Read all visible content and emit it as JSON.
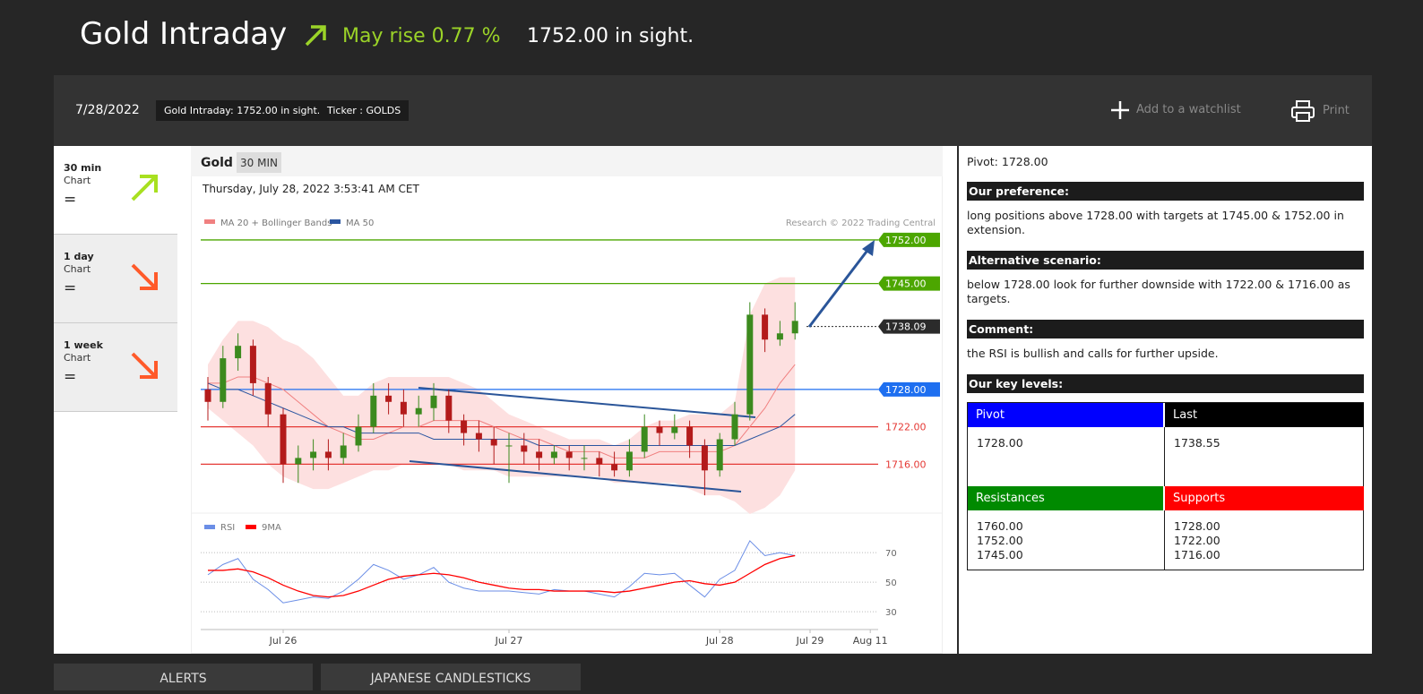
{
  "header": {
    "title": "Gold Intraday",
    "signal": "May rise 0.77 %",
    "target": "1752.00 in sight."
  },
  "toolbar": {
    "date": "7/28/2022",
    "badge": "Gold Intraday: 1752.00 in sight.",
    "ticker": "Ticker : GOLDS",
    "watchlist": "Add to a watchlist",
    "print": "Print"
  },
  "timeframes": [
    {
      "period": "30 min",
      "type": "Chart",
      "trend": "="
    },
    {
      "period": "1 day",
      "type": "Chart",
      "trend": "="
    },
    {
      "period": "1 week",
      "type": "Chart",
      "trend": "="
    }
  ],
  "chart_data": [
    {
      "type": "candlestick",
      "title": "Gold",
      "interval": "30 MIN",
      "timestamp": "Thursday, July 28, 2022 3:53:41 AM CET",
      "credit": "Research © 2022 Trading Central",
      "up_color": "#3c8a1e",
      "down_color": "#b31b1b",
      "open": [
        1728,
        1726,
        1733,
        1735,
        1729,
        1724,
        1716,
        1717,
        1718,
        1717,
        1719,
        1722,
        1727,
        1726,
        1724,
        1725,
        1727,
        1723,
        1721,
        1720,
        1719,
        1719,
        1718,
        1717,
        1718,
        1717,
        1717,
        1716,
        1715,
        1718,
        1722,
        1721,
        1722,
        1719,
        1715,
        1720,
        1724,
        1740,
        1736,
        1737,
        null,
        null,
        null,
        null,
        null
      ],
      "high": [
        1730,
        1735,
        1737,
        1736,
        1730,
        1725,
        1719,
        1720,
        1720,
        1721,
        1724,
        1729,
        1729,
        1728,
        1727,
        1729,
        1728,
        1724,
        1723,
        1722,
        1721,
        1721,
        1720,
        1719,
        1719,
        1719,
        1718,
        1718,
        1720,
        1724,
        1723,
        1724,
        1723,
        1720,
        1721,
        1726,
        1742,
        1741,
        1739,
        1742,
        null,
        null,
        null,
        null,
        null
      ],
      "low": [
        1723,
        1725,
        1731,
        1727,
        1722,
        1713,
        1713,
        1715,
        1715,
        1716,
        1718,
        1721,
        1724,
        1722,
        1722,
        1723,
        1721,
        1719,
        1718,
        1716,
        1713,
        1716,
        1715,
        1716,
        1715,
        1715,
        1714,
        1714,
        1714,
        1717,
        1719,
        1720,
        1717,
        1711,
        1714,
        1719,
        1723,
        1734,
        1735,
        1736,
        null,
        null,
        null,
        null,
        null
      ],
      "close": [
        1726,
        1733,
        1735,
        1729,
        1724,
        1716,
        1717,
        1718,
        1717,
        1719,
        1722,
        1727,
        1726,
        1724,
        1725,
        1727,
        1723,
        1721,
        1720,
        1719,
        1719,
        1718,
        1717,
        1718,
        1717,
        1717,
        1716,
        1715,
        1718,
        1722,
        1721,
        1722,
        1719,
        1715,
        1720,
        1724,
        1740,
        1736,
        1737,
        1739,
        null,
        null,
        null,
        null,
        null
      ],
      "series": [
        {
          "name": "MA 20 + Bollinger Bands",
          "color": "#f08080",
          "values": [
            1729,
            1729,
            1730,
            1730,
            1729,
            1728,
            1726,
            1724,
            1722,
            1721,
            1720,
            1720,
            1721,
            1722,
            1722,
            1723,
            1723,
            1723,
            1723,
            1722,
            1721,
            1720,
            1720,
            1719,
            1718,
            1718,
            1718,
            1717,
            1717,
            1717,
            1718,
            1718,
            1718,
            1718,
            1718,
            1719,
            1722,
            1725,
            1729,
            1732,
            null,
            null,
            null,
            null,
            null
          ]
        },
        {
          "name": "MA 50",
          "color": "#2a55a0",
          "values": [
            1729,
            1728,
            1728,
            1727,
            1726,
            1725,
            1724,
            1723,
            1722,
            1722,
            1721,
            1721,
            1721,
            1721,
            1721,
            1720,
            1720,
            1720,
            1720,
            1720,
            1720,
            1720,
            1719,
            1719,
            1719,
            1719,
            1719,
            1719,
            1719,
            1719,
            1719,
            1719,
            1719,
            1719,
            1719,
            1719,
            1720,
            1721,
            1722,
            1724,
            null,
            null,
            null,
            null,
            null
          ]
        }
      ],
      "bands": {
        "color": "#fde0e0",
        "upper": [
          1732,
          1736,
          1739,
          1739,
          1738,
          1736,
          1735,
          1733,
          1730,
          1727,
          1727,
          1729,
          1730,
          1730,
          1730,
          1730,
          1730,
          1729,
          1728,
          1726,
          1724,
          1723,
          1722,
          1721,
          1720,
          1720,
          1720,
          1719,
          1720,
          1722,
          1723,
          1723,
          1724,
          1724,
          1724,
          1726,
          1740,
          1745,
          1746,
          1746,
          null,
          null,
          null,
          null,
          null
        ],
        "lower": [
          1725,
          1723,
          1721,
          1719,
          1716,
          1714,
          1713,
          1712,
          1712,
          1713,
          1714,
          1715,
          1715,
          1716,
          1716,
          1716,
          1716,
          1715,
          1715,
          1715,
          1714,
          1714,
          1714,
          1714,
          1714,
          1714,
          1714,
          1713,
          1713,
          1713,
          1713,
          1713,
          1712,
          1711,
          1711,
          1710,
          1708,
          1709,
          1711,
          1715,
          null,
          null,
          null,
          null,
          null
        ]
      },
      "levels": [
        {
          "value": 1752,
          "label": "1752.00",
          "color": "#4ca600"
        },
        {
          "value": 1745,
          "label": "1745.00",
          "color": "#4ca600"
        },
        {
          "value": 1738.09,
          "label": "1738.09",
          "color": "#2b2b2b"
        },
        {
          "value": 1728,
          "label": "1728.00",
          "color": "#1e6ff0"
        },
        {
          "value": 1722,
          "label": "1722.00",
          "color": "#e53935"
        },
        {
          "value": 1716,
          "label": "1716.00",
          "color": "#e53935"
        }
      ],
      "ylim": [
        1708,
        1754
      ]
    },
    {
      "type": "line",
      "categories": [
        null,
        null,
        null,
        null,
        null,
        "Jul 26",
        null,
        null,
        null,
        null,
        null,
        null,
        null,
        null,
        null,
        null,
        null,
        null,
        null,
        null,
        "Jul 27",
        null,
        null,
        null,
        null,
        null,
        null,
        null,
        null,
        null,
        null,
        null,
        null,
        null,
        "Jul 28",
        null,
        null,
        null,
        null,
        null,
        "Jul 29",
        null,
        null,
        null,
        "Aug 11"
      ],
      "series": [
        {
          "name": "RSI",
          "color": "#6b8ee6",
          "values": [
            55,
            62,
            66,
            52,
            45,
            36,
            38,
            40,
            39,
            44,
            52,
            62,
            58,
            52,
            55,
            60,
            50,
            46,
            44,
            44,
            44,
            43,
            42,
            45,
            44,
            44,
            42,
            40,
            47,
            56,
            55,
            56,
            48,
            40,
            52,
            58,
            78,
            68,
            70,
            68,
            null,
            null,
            null,
            null,
            null
          ]
        },
        {
          "name": "9MA",
          "color": "#ff0000",
          "values": [
            58,
            58,
            59,
            57,
            53,
            48,
            44,
            41,
            40,
            41,
            44,
            48,
            52,
            54,
            55,
            56,
            55,
            53,
            50,
            48,
            46,
            45,
            45,
            44,
            44,
            44,
            44,
            43,
            44,
            46,
            48,
            50,
            51,
            49,
            48,
            50,
            56,
            62,
            66,
            68,
            null,
            null,
            null,
            null,
            null
          ]
        }
      ],
      "ylim": [
        21,
        81
      ],
      "yticks": [
        30,
        50,
        70
      ],
      "grid": true
    }
  ],
  "analysis": {
    "pivot": "Pivot: 1728.00",
    "sections": [
      {
        "heading": "Our preference:",
        "text": "long positions above 1728.00 with targets at 1745.00 & 1752.00 in extension."
      },
      {
        "heading": "Alternative scenario:",
        "text": "below 1728.00 look for further downside with 1722.00 & 1716.00 as targets."
      },
      {
        "heading": "Comment:",
        "text": "the RSI is bullish and calls for further upside."
      }
    ],
    "key_levels_heading": "Our key levels:",
    "key_levels": {
      "pivot_label": "Pivot",
      "pivot": "1728.00",
      "last_label": "Last",
      "last": "1738.55",
      "resistances_label": "Resistances",
      "resistances": [
        "1760.00",
        "1752.00",
        "1745.00"
      ],
      "supports_label": "Supports",
      "supports": [
        "1728.00",
        "1722.00",
        "1716.00"
      ]
    }
  },
  "tabs": [
    "ALERTS",
    "JAPANESE CANDLESTICKS"
  ]
}
